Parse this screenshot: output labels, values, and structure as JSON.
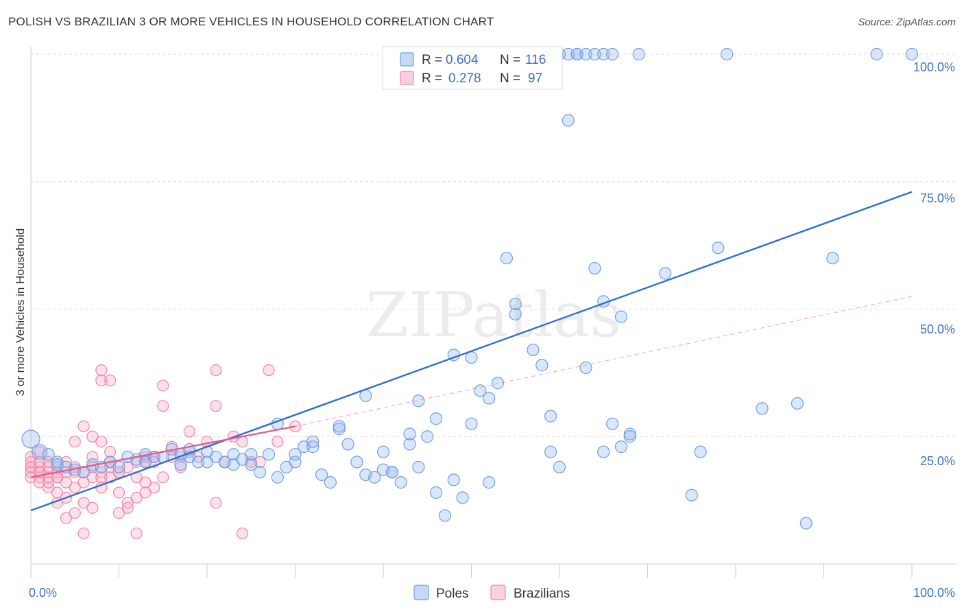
{
  "title": "POLISH VS BRAZILIAN 3 OR MORE VEHICLES IN HOUSEHOLD CORRELATION CHART",
  "source": "Source: ZipAtlas.com",
  "watermark": "ZIPatlas",
  "colors": {
    "poles": "#6f9fe0",
    "poles_fill": "rgba(150,185,240,0.35)",
    "poles_line": "#2f6fd0",
    "brazilians": "#ef88a8",
    "brazilians_fill": "rgba(245,170,195,0.35)",
    "brazilians_line": "#e0608c",
    "tick_text": "#3b6fc2",
    "grid": "#dddddd"
  },
  "legend": {
    "rows": [
      {
        "r_label": "R =",
        "r_value": "0.604",
        "n_label": "N =",
        "n_value": "116"
      },
      {
        "r_label": "R =",
        "r_value": "0.278",
        "n_label": "N =",
        "n_value": "97"
      }
    ]
  },
  "chart_data": {
    "type": "scatter",
    "title": "POLISH VS BRAZILIAN 3 OR MORE VEHICLES IN HOUSEHOLD CORRELATION CHART",
    "xlabel": "",
    "ylabel": "3 or more Vehicles in Household",
    "xlim": [
      0,
      100
    ],
    "ylim": [
      0,
      100
    ],
    "x_tick_labels": [
      "0.0%",
      "100.0%"
    ],
    "y_tick_labels": [
      "25.0%",
      "50.0%",
      "75.0%",
      "100.0%"
    ],
    "y_ticks": [
      25,
      50,
      75,
      100
    ],
    "grid": true,
    "legend_position": "top-center",
    "series": [
      {
        "name": "Poles",
        "r": 0.604,
        "n": 116,
        "trend": {
          "x": [
            0,
            100
          ],
          "y": [
            10.5,
            73
          ]
        },
        "points": [
          [
            0,
            24.5
          ],
          [
            1,
            22
          ],
          [
            2,
            21.5
          ],
          [
            3,
            20
          ],
          [
            3,
            19.5
          ],
          [
            4,
            19
          ],
          [
            5,
            18.5
          ],
          [
            6,
            18
          ],
          [
            7,
            19.5
          ],
          [
            8,
            19
          ],
          [
            9,
            20
          ],
          [
            10,
            19
          ],
          [
            11,
            21
          ],
          [
            12,
            20.5
          ],
          [
            13,
            21.5
          ],
          [
            13,
            20
          ],
          [
            14,
            21
          ],
          [
            15,
            21
          ],
          [
            16,
            22.5
          ],
          [
            17,
            21.5
          ],
          [
            17,
            19.5
          ],
          [
            18,
            21
          ],
          [
            18,
            22.5
          ],
          [
            19,
            20
          ],
          [
            20,
            22
          ],
          [
            20,
            20
          ],
          [
            21,
            21
          ],
          [
            22,
            20
          ],
          [
            23,
            21.5
          ],
          [
            23,
            19.5
          ],
          [
            24,
            20.5
          ],
          [
            25,
            19.5
          ],
          [
            25,
            21.5
          ],
          [
            26,
            18
          ],
          [
            27,
            21.5
          ],
          [
            28,
            17
          ],
          [
            28,
            27.5
          ],
          [
            29,
            19
          ],
          [
            30,
            20
          ],
          [
            30,
            21.5
          ],
          [
            31,
            23
          ],
          [
            32,
            23
          ],
          [
            32,
            24
          ],
          [
            33,
            17.5
          ],
          [
            34,
            16
          ],
          [
            35,
            26.5
          ],
          [
            35,
            27
          ],
          [
            36,
            23.5
          ],
          [
            37,
            20
          ],
          [
            38,
            17.5
          ],
          [
            38,
            33
          ],
          [
            39,
            17
          ],
          [
            40,
            18.5
          ],
          [
            40,
            22
          ],
          [
            41,
            18
          ],
          [
            41,
            18
          ],
          [
            42,
            16
          ],
          [
            43,
            23.5
          ],
          [
            43,
            25.5
          ],
          [
            44,
            32
          ],
          [
            44,
            19
          ],
          [
            45,
            25
          ],
          [
            46,
            14
          ],
          [
            46,
            28.5
          ],
          [
            47,
            9.5
          ],
          [
            48,
            16.5
          ],
          [
            48,
            41
          ],
          [
            49,
            13
          ],
          [
            50,
            27.5
          ],
          [
            50,
            40.5
          ],
          [
            51,
            34
          ],
          [
            52,
            32.5
          ],
          [
            52,
            16
          ],
          [
            53,
            35.5
          ],
          [
            54,
            60
          ],
          [
            55,
            49
          ],
          [
            55,
            51
          ],
          [
            57,
            42
          ],
          [
            58,
            39
          ],
          [
            59,
            29
          ],
          [
            59,
            22
          ],
          [
            60,
            19
          ],
          [
            61,
            87
          ],
          [
            62,
            100
          ],
          [
            63,
            38.5
          ],
          [
            64,
            58
          ],
          [
            65,
            22
          ],
          [
            65,
            51.5
          ],
          [
            66,
            27.5
          ],
          [
            67,
            23
          ],
          [
            67,
            48.5
          ],
          [
            68,
            25.5
          ],
          [
            68,
            25
          ],
          [
            69,
            100
          ],
          [
            72,
            57
          ],
          [
            75,
            13.5
          ],
          [
            76,
            22
          ],
          [
            78,
            62
          ],
          [
            79,
            100
          ],
          [
            83,
            30.5
          ],
          [
            87,
            31.5
          ],
          [
            88,
            8
          ],
          [
            91,
            60
          ],
          [
            96,
            100
          ],
          [
            100,
            100
          ],
          [
            56,
            100
          ],
          [
            57,
            100
          ],
          [
            58,
            100
          ],
          [
            60,
            100
          ],
          [
            61,
            100
          ],
          [
            62,
            100
          ],
          [
            63,
            100
          ],
          [
            64,
            100
          ],
          [
            65,
            100
          ],
          [
            66,
            100
          ]
        ]
      },
      {
        "name": "Brazilians",
        "r": 0.278,
        "n": 97,
        "trend": {
          "x": [
            0,
            30
          ],
          "y": [
            17,
            27
          ]
        },
        "trend_extension": {
          "x": [
            30,
            100
          ],
          "y": [
            27,
            52.5
          ]
        },
        "points": [
          [
            0,
            19
          ],
          [
            0,
            18
          ],
          [
            0,
            20
          ],
          [
            0,
            17
          ],
          [
            0,
            21
          ],
          [
            1,
            19
          ],
          [
            1,
            17
          ],
          [
            1,
            20
          ],
          [
            1,
            18
          ],
          [
            1,
            16
          ],
          [
            1,
            22
          ],
          [
            2,
            18
          ],
          [
            2,
            15
          ],
          [
            2,
            17
          ],
          [
            2,
            20
          ],
          [
            2,
            16
          ],
          [
            3,
            18
          ],
          [
            3,
            14
          ],
          [
            3,
            19
          ],
          [
            3,
            12
          ],
          [
            3,
            17
          ],
          [
            4,
            18
          ],
          [
            4,
            13
          ],
          [
            4,
            9
          ],
          [
            4,
            16
          ],
          [
            5,
            19
          ],
          [
            5,
            10
          ],
          [
            5,
            24
          ],
          [
            5,
            15
          ],
          [
            6,
            18
          ],
          [
            6,
            12
          ],
          [
            6,
            27
          ],
          [
            6,
            6
          ],
          [
            7,
            17
          ],
          [
            7,
            25
          ],
          [
            7,
            11
          ],
          [
            7,
            21
          ],
          [
            8,
            38
          ],
          [
            8,
            18
          ],
          [
            8,
            24
          ],
          [
            8,
            36
          ],
          [
            8,
            15
          ],
          [
            9,
            36
          ],
          [
            9,
            17
          ],
          [
            9,
            22
          ],
          [
            9,
            19
          ],
          [
            10,
            14
          ],
          [
            10,
            10
          ],
          [
            10,
            18
          ],
          [
            11,
            11
          ],
          [
            11,
            12
          ],
          [
            12,
            20
          ],
          [
            12,
            6
          ],
          [
            12,
            13
          ],
          [
            13,
            16
          ],
          [
            13,
            14
          ],
          [
            13,
            20
          ],
          [
            14,
            15
          ],
          [
            14,
            21
          ],
          [
            15,
            35
          ],
          [
            15,
            31
          ],
          [
            15,
            17
          ],
          [
            16,
            21
          ],
          [
            16,
            23
          ],
          [
            17,
            21
          ],
          [
            17,
            19
          ],
          [
            18,
            26
          ],
          [
            18,
            22
          ],
          [
            19,
            21
          ],
          [
            20,
            24
          ],
          [
            21,
            38
          ],
          [
            21,
            31
          ],
          [
            21,
            12
          ],
          [
            22,
            20
          ],
          [
            23,
            25
          ],
          [
            24,
            6
          ],
          [
            24,
            24
          ],
          [
            25,
            20
          ],
          [
            26,
            20
          ],
          [
            27,
            38
          ],
          [
            28,
            24
          ],
          [
            0,
            19
          ],
          [
            1,
            18
          ],
          [
            2,
            19
          ],
          [
            3,
            17
          ],
          [
            4,
            20
          ],
          [
            5,
            18
          ],
          [
            6,
            16
          ],
          [
            7,
            19
          ],
          [
            8,
            17
          ],
          [
            9,
            20
          ],
          [
            10,
            18
          ],
          [
            11,
            19
          ],
          [
            12,
            17
          ],
          [
            13,
            21
          ],
          [
            14,
            20
          ],
          [
            30,
            27
          ]
        ]
      }
    ]
  },
  "bottom_legend": [
    {
      "label": "Poles"
    },
    {
      "label": "Brazilians"
    }
  ]
}
